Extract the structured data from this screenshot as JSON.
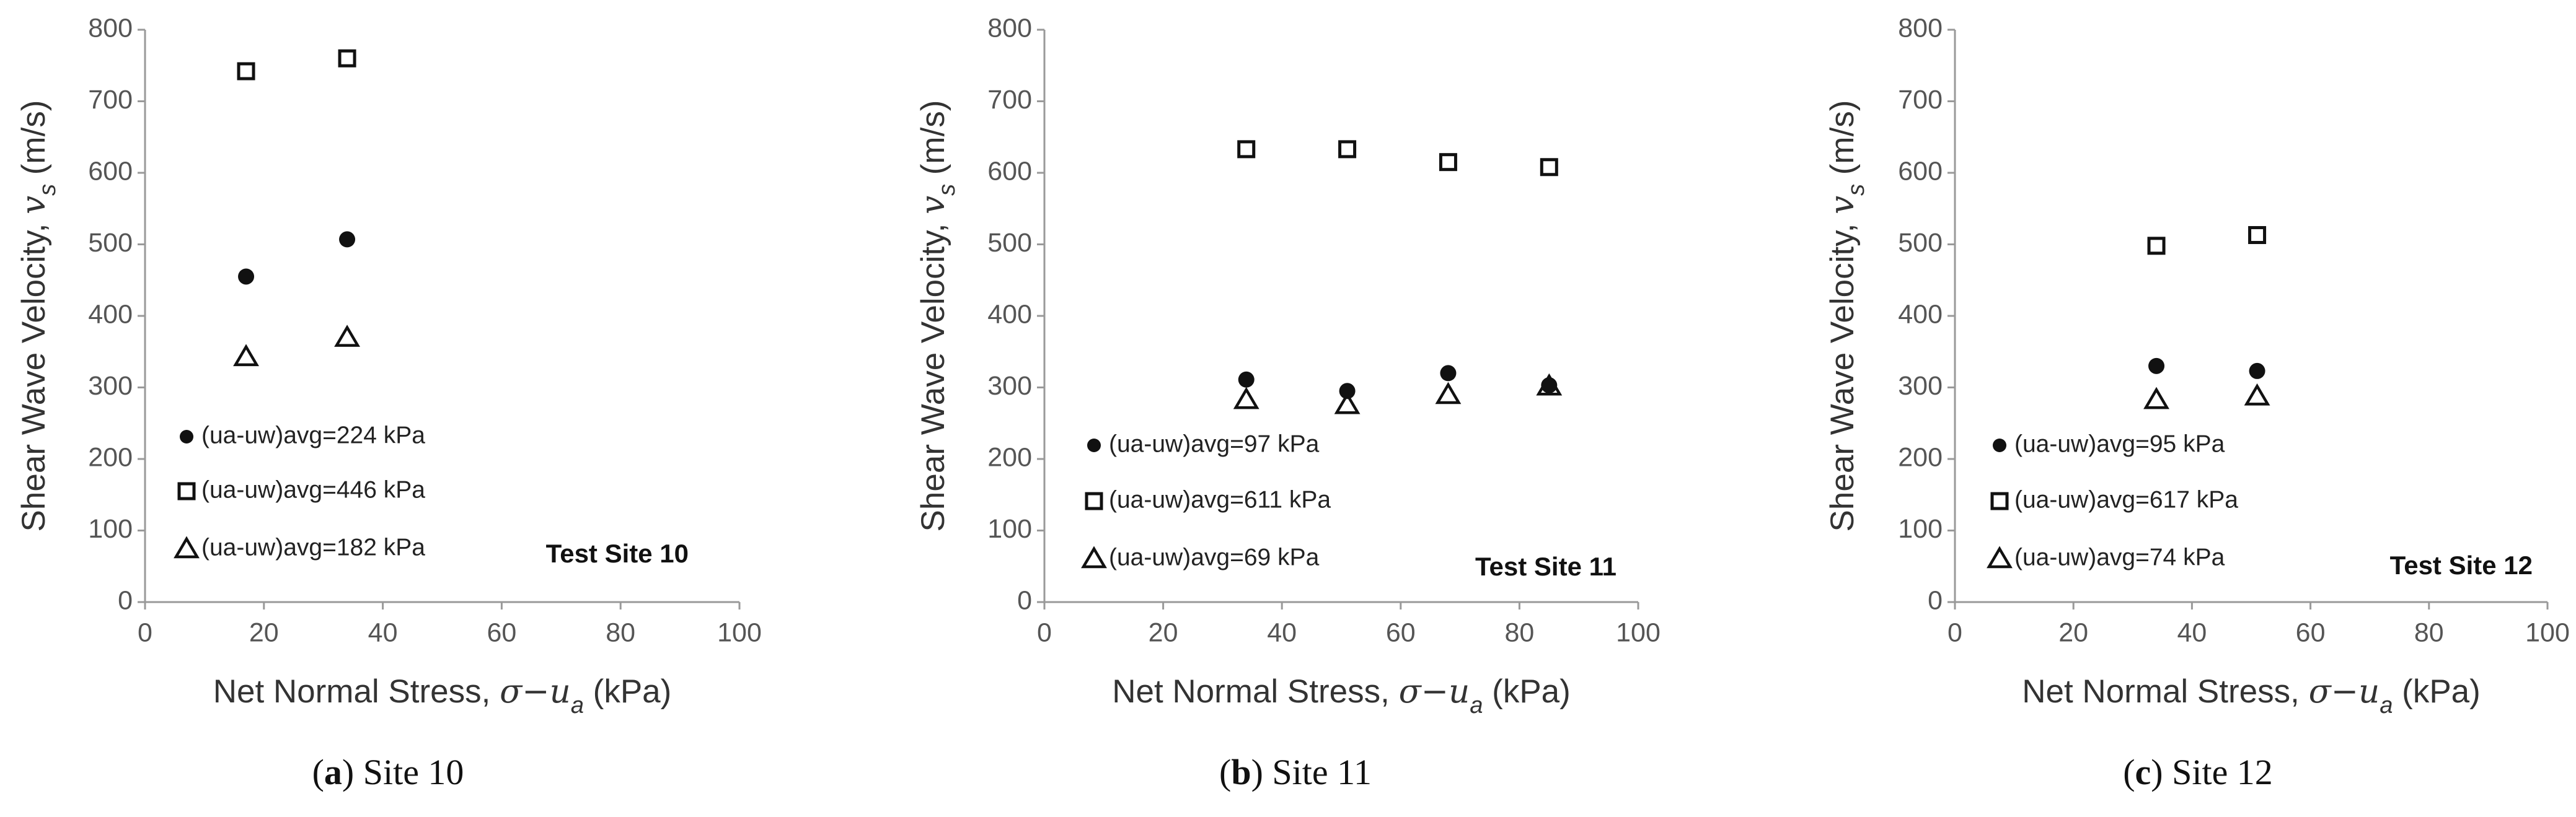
{
  "chart_data": [
    {
      "type": "scatter",
      "xlabel": {
        "text": "Net Normal Stress, ",
        "var": "σ−u",
        "sub": "a",
        "unit": " (kPa)"
      },
      "ylabel": {
        "text": "Shear Wave Velocity, ",
        "var": "v",
        "sub": "s",
        "unit": " (m/s)"
      },
      "xlim": [
        0,
        100
      ],
      "xticks": [
        0,
        20,
        40,
        60,
        80,
        100
      ],
      "ylim": [
        0,
        800
      ],
      "yticks": [
        0,
        100,
        200,
        300,
        400,
        500,
        600,
        700,
        800
      ],
      "annotation": "Test Site 10",
      "caption": {
        "prefix": "(",
        "letter": "a",
        "suffix": ") Site 10"
      },
      "series": [
        {
          "name": "(ua-uw)avg=224 kPa",
          "marker": "circle",
          "color": "#111111",
          "x": [
            17,
            34
          ],
          "values": [
            455,
            507
          ]
        },
        {
          "name": "(ua-uw)avg=446 kPa",
          "marker": "square",
          "color": "#111111",
          "x": [
            17,
            34
          ],
          "values": [
            742,
            760
          ]
        },
        {
          "name": "(ua-uw)avg=182 kPa",
          "marker": "triangle",
          "color": "#111111",
          "x": [
            17,
            34
          ],
          "values": [
            343,
            370
          ]
        }
      ]
    },
    {
      "type": "scatter",
      "xlabel": {
        "text": "Net Normal Stress, ",
        "var": "σ−u",
        "sub": "a",
        "unit": " (kPa)"
      },
      "ylabel": {
        "text": "Shear Wave Velocity, ",
        "var": "v",
        "sub": "s",
        "unit": " (m/s)"
      },
      "xlim": [
        0,
        100
      ],
      "xticks": [
        0,
        20,
        40,
        60,
        80,
        100
      ],
      "ylim": [
        0,
        800
      ],
      "yticks": [
        0,
        100,
        200,
        300,
        400,
        500,
        600,
        700,
        800
      ],
      "annotation": "Test Site 11",
      "caption": {
        "prefix": "(",
        "letter": "b",
        "suffix": ") Site 11"
      },
      "series": [
        {
          "name": "(ua-uw)avg=97 kPa",
          "marker": "circle",
          "color": "#111111",
          "x": [
            34,
            51,
            68,
            85
          ],
          "values": [
            311,
            295,
            320,
            303
          ]
        },
        {
          "name": "(ua-uw)avg=611 kPa",
          "marker": "square",
          "color": "#111111",
          "x": [
            34,
            51,
            68,
            85
          ],
          "values": [
            633,
            633,
            615,
            608
          ]
        },
        {
          "name": "(ua-uw)avg=69 kPa",
          "marker": "triangle",
          "color": "#111111",
          "x": [
            34,
            51,
            68,
            85
          ],
          "values": [
            283,
            276,
            290,
            302
          ]
        }
      ]
    },
    {
      "type": "scatter",
      "xlabel": {
        "text": "Net Normal Stress, ",
        "var": "σ−u",
        "sub": "a",
        "unit": " (kPa)"
      },
      "ylabel": {
        "text": "Shear Wave Velocity, ",
        "var": "v",
        "sub": "s",
        "unit": " (m/s)"
      },
      "xlim": [
        0,
        100
      ],
      "xticks": [
        0,
        20,
        40,
        60,
        80,
        100
      ],
      "ylim": [
        0,
        800
      ],
      "yticks": [
        0,
        100,
        200,
        300,
        400,
        500,
        600,
        700,
        800
      ],
      "annotation": "Test Site 12",
      "caption": {
        "prefix": "(",
        "letter": "c",
        "suffix": ") Site 12"
      },
      "series": [
        {
          "name": "(ua-uw)avg=95 kPa",
          "marker": "circle",
          "color": "#111111",
          "x": [
            34,
            51
          ],
          "values": [
            330,
            323
          ]
        },
        {
          "name": "(ua-uw)avg=617 kPa",
          "marker": "square",
          "color": "#111111",
          "x": [
            34,
            51
          ],
          "values": [
            498,
            513
          ]
        },
        {
          "name": "(ua-uw)avg=74 kPa",
          "marker": "triangle",
          "color": "#111111",
          "x": [
            34,
            51
          ],
          "values": [
            283,
            288
          ]
        }
      ]
    }
  ]
}
